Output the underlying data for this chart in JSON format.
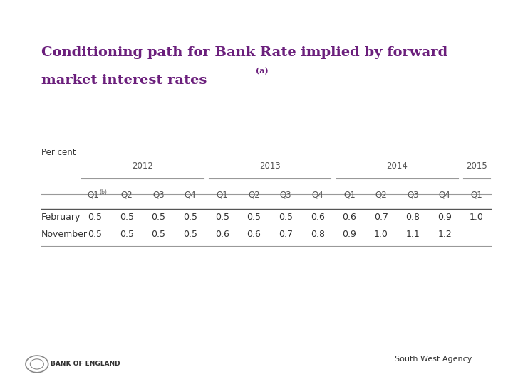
{
  "title_line1": "Conditioning path for Bank Rate implied by forward",
  "title_line2": "market interest rates",
  "title_superscript": "(a)",
  "title_color": "#6B1F7C",
  "background_color": "#FFFFFF",
  "per_cent_label": "Per cent",
  "year_headers": [
    "2012",
    "2013",
    "2014",
    "2015"
  ],
  "col_headers_display": [
    "Q1(b)",
    "Q2",
    "Q3",
    "Q4",
    "Q1",
    "Q2",
    "Q3",
    "Q4",
    "Q1",
    "Q2",
    "Q3",
    "Q4",
    "Q1"
  ],
  "row_labels": [
    "February",
    "November"
  ],
  "february_values": [
    "0.5",
    "0.5",
    "0.5",
    "0.5",
    "0.5",
    "0.5",
    "0.5",
    "0.6",
    "0.6",
    "0.7",
    "0.8",
    "0.9",
    "1.0"
  ],
  "november_values": [
    "0.5",
    "0.5",
    "0.5",
    "0.5",
    "0.6",
    "0.6",
    "0.7",
    "0.8",
    "0.9",
    "1.0",
    "1.1",
    "1.2",
    ""
  ],
  "footer_text": "South West Agency",
  "bank_of_england_text": "BANK OF ENGLAND",
  "table_text_color": "#333333",
  "header_text_color": "#555555"
}
